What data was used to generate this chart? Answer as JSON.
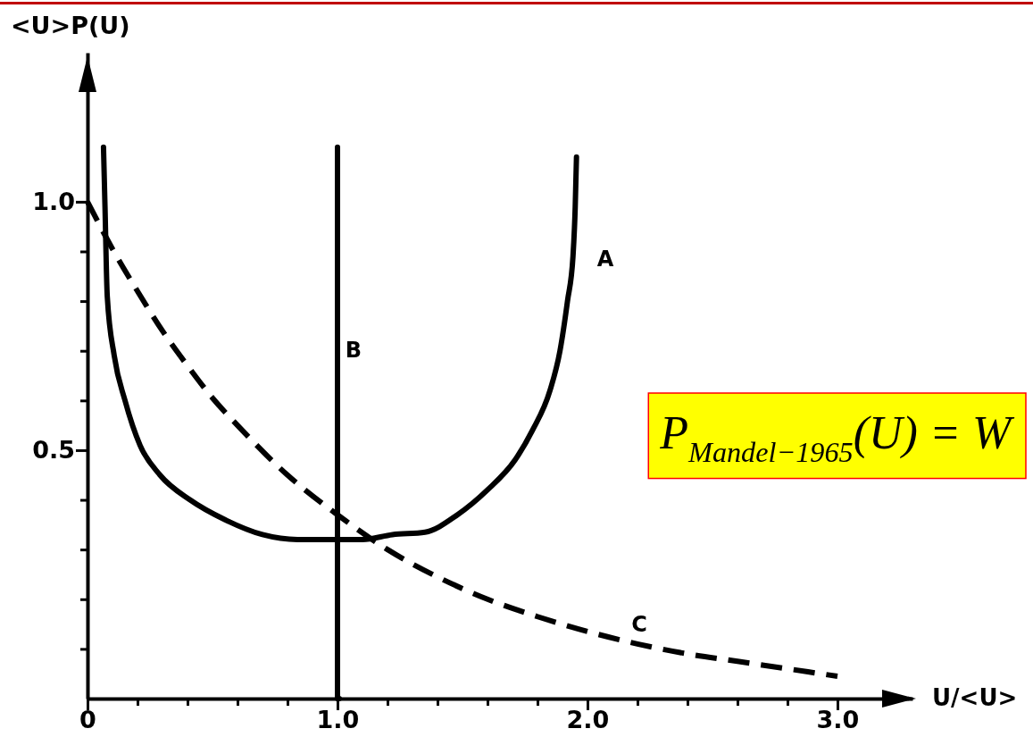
{
  "chart_data": {
    "type": "line",
    "xlabel": "U/<U>",
    "ylabel": "<U>P(U)",
    "xlim": [
      0,
      3.3
    ],
    "ylim": [
      0,
      1.3
    ],
    "xticks": [
      {
        "value": 0,
        "label": "0"
      },
      {
        "value": 0.2,
        "label": null
      },
      {
        "value": 0.4,
        "label": null
      },
      {
        "value": 0.6,
        "label": null
      },
      {
        "value": 0.8,
        "label": null
      },
      {
        "value": 1,
        "label": "1.0"
      },
      {
        "value": 1.2,
        "label": null
      },
      {
        "value": 1.4,
        "label": null
      },
      {
        "value": 1.6,
        "label": null
      },
      {
        "value": 1.8,
        "label": null
      },
      {
        "value": 2,
        "label": "2.0"
      },
      {
        "value": 2.2,
        "label": null
      },
      {
        "value": 2.4,
        "label": null
      },
      {
        "value": 2.6,
        "label": null
      },
      {
        "value": 2.8,
        "label": null
      },
      {
        "value": 3,
        "label": "3.0"
      }
    ],
    "yticks": [
      {
        "value": 0.1,
        "label": null
      },
      {
        "value": 0.2,
        "label": null
      },
      {
        "value": 0.3,
        "label": null
      },
      {
        "value": 0.4,
        "label": null
      },
      {
        "value": 0.5,
        "label": "0.5"
      },
      {
        "value": 0.6,
        "label": null
      },
      {
        "value": 0.7,
        "label": null
      },
      {
        "value": 0.8,
        "label": null
      },
      {
        "value": 0.9,
        "label": null
      },
      {
        "value": 1,
        "label": "1.0"
      }
    ],
    "grid": false,
    "legend": false,
    "marker": "none",
    "annotations": [
      "P$_{Mandel−1965}$(U) = W"
    ],
    "series": [
      {
        "name": "A",
        "color": "#000000",
        "line_style": "solid",
        "x": [
          0.064,
          0.07,
          0.079,
          0.107,
          0.15,
          0.21,
          0.29,
          0.41,
          0.55,
          0.7,
          0.84,
          1.0,
          1.1,
          1.22,
          1.35,
          1.48,
          1.6,
          1.71,
          1.78,
          1.85,
          1.89,
          1.92,
          1.942,
          1.951,
          1.956
        ],
        "values": [
          1.11,
          0.99,
          0.81,
          0.69,
          0.6,
          0.51,
          0.45,
          0.4,
          0.36,
          0.33,
          0.32,
          0.32,
          0.32,
          0.33,
          0.335,
          0.37,
          0.42,
          0.48,
          0.54,
          0.62,
          0.7,
          0.8,
          0.89,
          0.99,
          1.09
        ]
      },
      {
        "name": "B",
        "color": "#000000",
        "line_style": "solid",
        "x": [
          1,
          1
        ],
        "values": [
          0,
          1.11
        ]
      },
      {
        "name": "C",
        "color": "#000000",
        "line_style": "dashed",
        "x": [
          0,
          0.1,
          0.2,
          0.3,
          0.4,
          0.5,
          0.6,
          0.8,
          1.0,
          1.2,
          1.4,
          1.6,
          1.8,
          2.0,
          2.2,
          2.4,
          2.6,
          2.8,
          3.0
        ],
        "values": [
          1.0,
          0.905,
          0.82,
          0.74,
          0.67,
          0.605,
          0.55,
          0.45,
          0.37,
          0.3,
          0.245,
          0.2,
          0.165,
          0.135,
          0.11,
          0.09,
          0.075,
          0.06,
          0.045
        ]
      }
    ]
  }
}
